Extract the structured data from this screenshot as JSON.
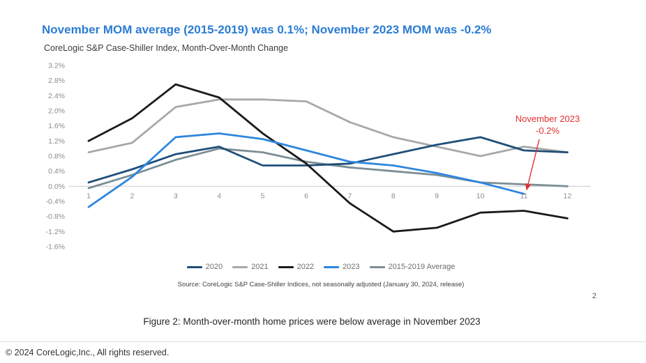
{
  "page": {
    "title": "November MOM average (2015-2019) was 0.1%; November 2023 MOM was -0.2%",
    "caption": "Figure 2: Month-over-month home prices were below average in November 2023",
    "footer": "© 2024 CoreLogic,Inc., All rights reserved.",
    "page_number": "2",
    "accent_color": "#2B7CD3"
  },
  "chart_data": {
    "type": "line",
    "title": "CoreLogic S&P Case-Shiller Index, Month-Over-Month Change",
    "x": [
      1,
      2,
      3,
      4,
      5,
      6,
      7,
      8,
      9,
      10,
      11,
      12
    ],
    "ylim": [
      -1.6,
      3.2
    ],
    "ytick_step": 0.4,
    "ytick_labels": [
      "3.2%",
      "2.8%",
      "2.4%",
      "2.0%",
      "1.6%",
      "1.2%",
      "0.8%",
      "0.4%",
      "0.0%",
      "-0.4%",
      "-0.8%",
      "-1.2%",
      "-1.6%"
    ],
    "grid": "zero-line-only",
    "legend_position": "bottom",
    "series": [
      {
        "name": "2020",
        "color": "#1F4E79",
        "values": [
          0.1,
          0.45,
          0.85,
          1.05,
          0.55,
          0.55,
          0.6,
          0.85,
          1.1,
          1.3,
          0.95,
          0.9
        ]
      },
      {
        "name": "2021",
        "color": "#A8A8A8",
        "values": [
          0.9,
          1.15,
          2.1,
          2.3,
          2.3,
          2.25,
          1.7,
          1.3,
          1.05,
          0.8,
          1.05,
          0.9
        ]
      },
      {
        "name": "2022",
        "color": "#1A1A1A",
        "values": [
          1.2,
          1.8,
          2.7,
          2.35,
          1.4,
          0.6,
          -0.45,
          -1.2,
          -1.1,
          -0.7,
          -0.65,
          -0.85
        ]
      },
      {
        "name": "2023",
        "color": "#2E86DE",
        "values": [
          -0.55,
          0.25,
          1.3,
          1.4,
          1.25,
          0.95,
          0.65,
          0.55,
          0.35,
          0.1,
          -0.2,
          null
        ]
      },
      {
        "name": "2015-2019 Average",
        "color": "#7C8E95",
        "values": [
          -0.05,
          0.3,
          0.7,
          1.0,
          0.9,
          0.65,
          0.5,
          0.4,
          0.3,
          0.1,
          0.05,
          0.0
        ]
      }
    ],
    "annotation": {
      "lines": [
        "November 2023",
        "-0.2%"
      ],
      "color": "#E03131",
      "target": {
        "x": 11,
        "y": -0.2
      }
    },
    "source": "Source: CoreLogic S&P Case-Shiller Indices, not seasonally adjusted (January 30, 2024, release)"
  }
}
